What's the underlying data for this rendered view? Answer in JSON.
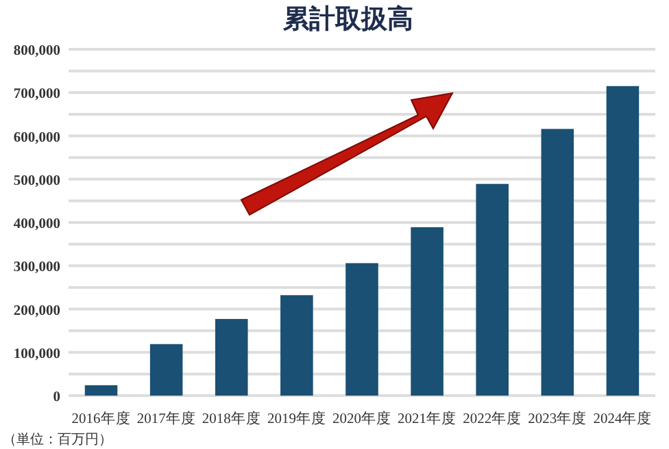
{
  "chart_data": {
    "type": "bar",
    "title": "累計取扱高",
    "categories": [
      "2016年度",
      "2017年度",
      "2018年度",
      "2019年度",
      "2020年度",
      "2021年度",
      "2022年度",
      "2023年度",
      "2024年度"
    ],
    "values": [
      24000,
      119000,
      177000,
      232000,
      306000,
      389000,
      489000,
      616000,
      715000
    ],
    "color": "#1a5073",
    "ylim": [
      0,
      800000
    ],
    "yticks": [
      {
        "value": 0,
        "label": "0"
      },
      {
        "value": 50000,
        "label": null
      },
      {
        "value": 100000,
        "label": "100,000"
      },
      {
        "value": 150000,
        "label": null
      },
      {
        "value": 200000,
        "label": "200,000"
      },
      {
        "value": 250000,
        "label": null
      },
      {
        "value": 300000,
        "label": "300,000"
      },
      {
        "value": 350000,
        "label": null
      },
      {
        "value": 400000,
        "label": "400,000"
      },
      {
        "value": 450000,
        "label": null
      },
      {
        "value": 500000,
        "label": "500,000"
      },
      {
        "value": 550000,
        "label": null
      },
      {
        "value": 600000,
        "label": "600,000"
      },
      {
        "value": 650000,
        "label": null
      },
      {
        "value": 700000,
        "label": "700,000"
      },
      {
        "value": 750000,
        "label": null
      },
      {
        "value": 800000,
        "label": "800,000"
      }
    ],
    "grid": "y",
    "annotations": [
      "（単位：百万円）"
    ]
  }
}
